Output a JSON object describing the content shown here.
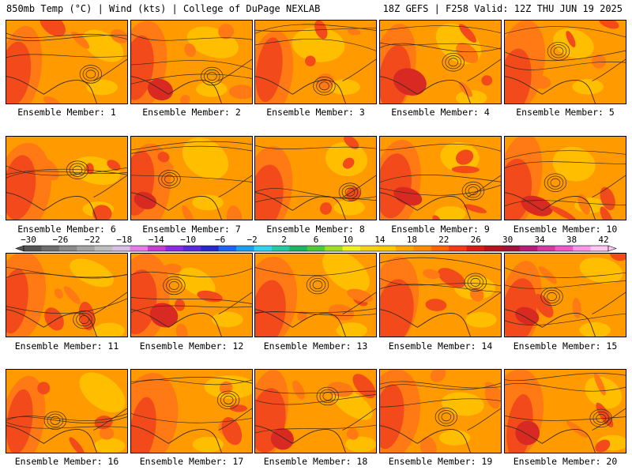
{
  "header": {
    "left": "850mb Temp (°C) | Wind (kts) | College of DuPage NEXLAB",
    "right": "18Z GEFS | F258 Valid: 12Z THU JUN 19 2025"
  },
  "members": [
    "Ensemble Member: 1",
    "Ensemble Member: 2",
    "Ensemble Member: 3",
    "Ensemble Member: 4",
    "Ensemble Member: 5",
    "Ensemble Member: 6",
    "Ensemble Member: 7",
    "Ensemble Member: 8",
    "Ensemble Member: 9",
    "Ensemble Member: 10",
    "Ensemble Member: 11",
    "Ensemble Member: 12",
    "Ensemble Member: 13",
    "Ensemble Member: 14",
    "Ensemble Member: 15",
    "Ensemble Member: 16",
    "Ensemble Member: 17",
    "Ensemble Member: 18",
    "Ensemble Member: 19",
    "Ensemble Member: 20"
  ],
  "colorbar": {
    "labels": [
      "−30",
      "−26",
      "−22",
      "−18",
      "−14",
      "−10",
      "−6",
      "−2",
      "2",
      "6",
      "10",
      "14",
      "18",
      "22",
      "26",
      "30",
      "34",
      "38",
      "42"
    ],
    "colors": [
      "#545454",
      "#6e6e6e",
      "#8a8a8a",
      "#a4a4a4",
      "#bebebe",
      "#d7bfe6",
      "#e67ae6",
      "#c83cd2",
      "#8a2be2",
      "#5a2ad8",
      "#2828c8",
      "#1e64f0",
      "#1e9ef0",
      "#32d2f0",
      "#28c8a0",
      "#1eb464",
      "#50c83c",
      "#a0dc28",
      "#f0f028",
      "#f0d21e",
      "#ffc800",
      "#ffa500",
      "#ff8c00",
      "#ff6400",
      "#f03c14",
      "#d21e14",
      "#b4141e",
      "#a0143c",
      "#b41e78",
      "#d23ca0",
      "#f05ac8",
      "#ff96e6",
      "#ffc8f0"
    ]
  },
  "palette": {
    "base": "#ff9a00",
    "warm": "#ff7a14",
    "hot": "#f24a1a",
    "veryhot": "#d82a22",
    "cool": "#ffbe00"
  }
}
